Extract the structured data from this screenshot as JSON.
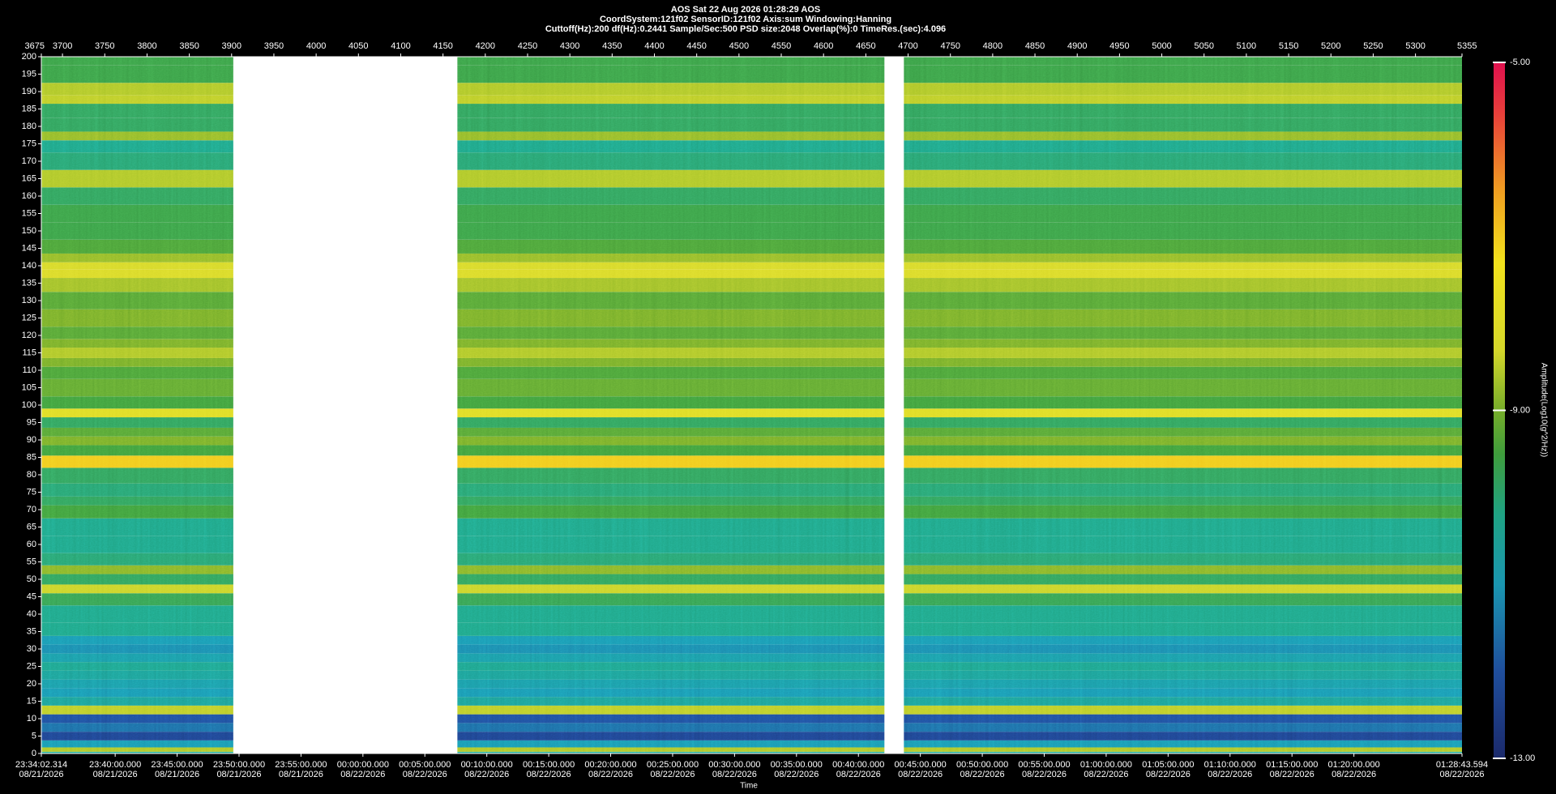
{
  "chart_data": {
    "type": "spectrogram",
    "title": "AOS  Sat 22 Aug 2026 01:28:29  AOS",
    "info_lines": [
      "CoordSystem:121f02    SensorID:121f02     Axis:sum      Windowing:Hanning",
      "Cuttoff(Hz):200       df(Hz):0.2441       Sample/Sec:500       PSD size:2048        Overlap(%):0       TimeRes.(sec):4.096"
    ],
    "xlabel": "Time",
    "colorbar_label": "Amplitude(Log10(g^2/Hz))",
    "xlim": [
      3675,
      5355
    ],
    "xticks": [
      3675,
      3700,
      3750,
      3800,
      3850,
      3900,
      3950,
      4000,
      4050,
      4100,
      4150,
      4200,
      4250,
      4300,
      4350,
      4400,
      4450,
      4500,
      4550,
      4600,
      4650,
      4700,
      4750,
      4800,
      4850,
      4900,
      4950,
      5000,
      5050,
      5100,
      5150,
      5200,
      5250,
      5300,
      5355
    ],
    "time_ticks": [
      {
        "value": 3675,
        "label": "23:34:02.314",
        "date": "08/21/2026"
      },
      {
        "value": 3762.33,
        "label": "23:40:00.000",
        "date": "08/21/2026"
      },
      {
        "value": 3835.57,
        "label": "23:45:00.000",
        "date": "08/21/2026"
      },
      {
        "value": 3908.81,
        "label": "23:50:00.000",
        "date": "08/21/2026"
      },
      {
        "value": 3982.06,
        "label": "23:55:00.000",
        "date": "08/21/2026"
      },
      {
        "value": 4055.3,
        "label": "00:00:00.000",
        "date": "08/22/2026"
      },
      {
        "value": 4128.54,
        "label": "00:05:00.000",
        "date": "08/22/2026"
      },
      {
        "value": 4201.79,
        "label": "00:10:00.000",
        "date": "08/22/2026"
      },
      {
        "value": 4275.03,
        "label": "00:15:00.000",
        "date": "08/22/2026"
      },
      {
        "value": 4348.27,
        "label": "00:20:00.000",
        "date": "08/22/2026"
      },
      {
        "value": 4421.52,
        "label": "00:25:00.000",
        "date": "08/22/2026"
      },
      {
        "value": 4494.76,
        "label": "00:30:00.000",
        "date": "08/22/2026"
      },
      {
        "value": 4568,
        "label": "00:35:00.000",
        "date": "08/22/2026"
      },
      {
        "value": 4641.25,
        "label": "00:40:00.000",
        "date": "08/22/2026"
      },
      {
        "value": 4714.49,
        "label": "00:45:00.000",
        "date": "08/22/2026"
      },
      {
        "value": 4787.73,
        "label": "00:50:00.000",
        "date": "08/22/2026"
      },
      {
        "value": 4860.98,
        "label": "00:55:00.000",
        "date": "08/22/2026"
      },
      {
        "value": 4934.22,
        "label": "01:00:00.000",
        "date": "08/22/2026"
      },
      {
        "value": 5007.46,
        "label": "01:05:00.000",
        "date": "08/22/2026"
      },
      {
        "value": 5080.71,
        "label": "01:10:00.000",
        "date": "08/22/2026"
      },
      {
        "value": 5153.95,
        "label": "01:15:00.000",
        "date": "08/22/2026"
      },
      {
        "value": 5227.19,
        "label": "01:20:00.000",
        "date": "08/22/2026"
      },
      {
        "value": 5355,
        "label": "01:28:43.594",
        "date": "08/22/2026"
      }
    ],
    "ylim": [
      0,
      200
    ],
    "yticks": [
      0,
      5,
      10,
      15,
      20,
      25,
      30,
      35,
      40,
      45,
      50,
      55,
      60,
      65,
      70,
      75,
      80,
      85,
      90,
      95,
      100,
      105,
      110,
      115,
      120,
      125,
      130,
      135,
      140,
      145,
      150,
      155,
      160,
      165,
      170,
      175,
      180,
      185,
      190,
      195,
      200
    ],
    "segments": [
      [
        3675,
        3902
      ],
      [
        4167,
        4672
      ],
      [
        4695,
        5355
      ]
    ],
    "frequencies": [
      0,
      1,
      2.5,
      5,
      7.5,
      10,
      12.5,
      15,
      17.5,
      20,
      22.5,
      25,
      27.5,
      30,
      32.5,
      35,
      40,
      45,
      47,
      50,
      53,
      55,
      60,
      65,
      70,
      72.5,
      75,
      80,
      84,
      87,
      90,
      92,
      95,
      98,
      100,
      105,
      110,
      112,
      115,
      118,
      120,
      125,
      130,
      135,
      138,
      140,
      142,
      145,
      150,
      155,
      160,
      165,
      170,
      175,
      177,
      180,
      185,
      188,
      190,
      195,
      200
    ],
    "amplitude": [
      -10.4,
      -8.6,
      -11,
      -12.3,
      -11.6,
      -12,
      -8.5,
      -10.5,
      -11,
      -10.8,
      -10.5,
      -10.3,
      -10.8,
      -11.2,
      -11,
      -10.2,
      -10.2,
      -9.7,
      -8.4,
      -9.8,
      -8.9,
      -10,
      -10.2,
      -10.2,
      -9.5,
      -9.8,
      -10,
      -9.8,
      -7,
      -9.5,
      -9,
      -9.3,
      -9.8,
      -8,
      -9.5,
      -9.2,
      -9.4,
      -9,
      -8.6,
      -9,
      -9.3,
      -9,
      -9.3,
      -8.7,
      -8.2,
      -8.3,
      -8.8,
      -9.4,
      -9.6,
      -9.6,
      -9.8,
      -8.6,
      -10,
      -10.2,
      -8.8,
      -9.8,
      -9.8,
      -8.5,
      -8.6,
      -9.6,
      -9.6
    ],
    "clim": [
      -13,
      -5
    ],
    "colorbar_ticks": [
      {
        "value": -5,
        "label": "-5.00"
      },
      {
        "value": -9,
        "label": "-9.00"
      },
      {
        "value": -13,
        "label": "-13.00"
      }
    ],
    "colormap": [
      {
        "value": -13,
        "color": "#1b2a6b"
      },
      {
        "value": -12,
        "color": "#1f4e9c"
      },
      {
        "value": -11,
        "color": "#1a96b0"
      },
      {
        "value": -10.2,
        "color": "#1fa384"
      },
      {
        "value": -9.5,
        "color": "#3f9d3c"
      },
      {
        "value": -9,
        "color": "#76ad2a"
      },
      {
        "value": -8.3,
        "color": "#d6d82a"
      },
      {
        "value": -7.3,
        "color": "#f2e21c"
      },
      {
        "value": -6.5,
        "color": "#f0a020"
      },
      {
        "value": -5.6,
        "color": "#e8403a"
      },
      {
        "value": -5,
        "color": "#e0104e"
      }
    ]
  }
}
